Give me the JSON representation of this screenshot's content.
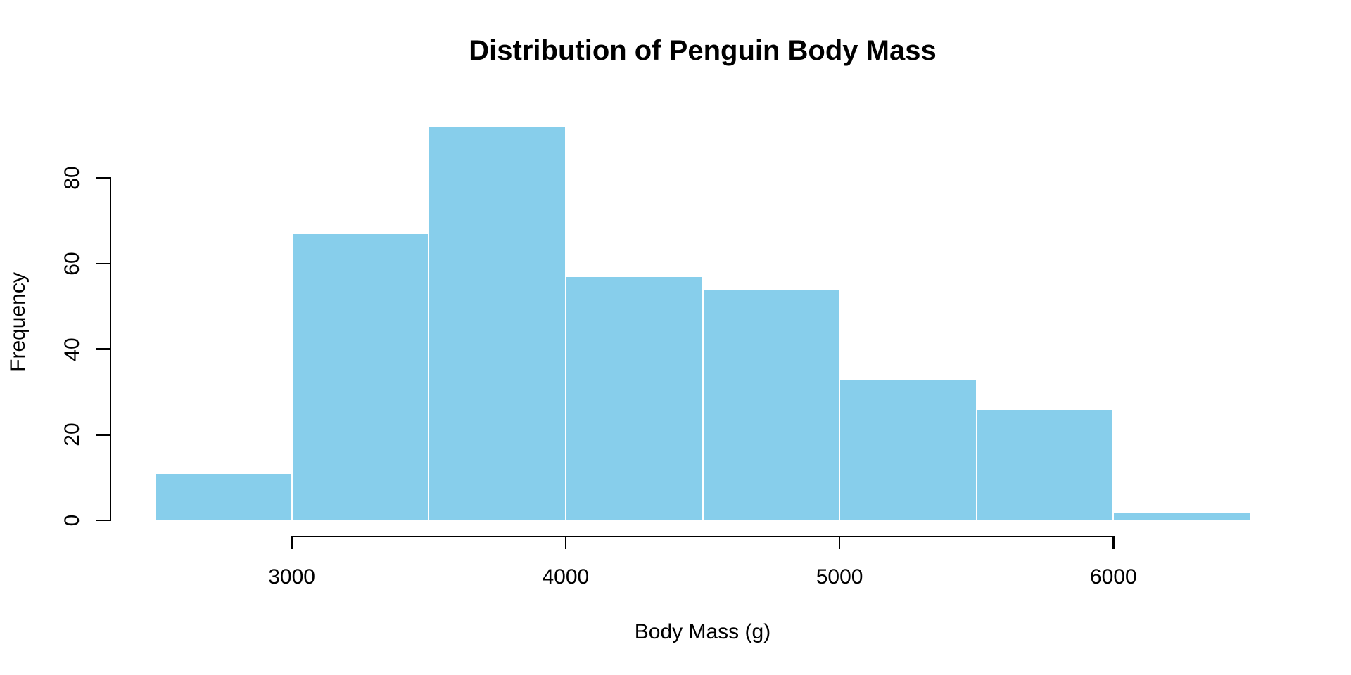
{
  "chart_data": {
    "type": "bar",
    "subtype": "histogram",
    "title": "Distribution of Penguin Body Mass",
    "xlabel": "Body Mass (g)",
    "ylabel": "Frequency",
    "bin_edges": [
      2500,
      3000,
      3500,
      4000,
      4500,
      5000,
      5500,
      6000,
      6500
    ],
    "counts": [
      11,
      67,
      92,
      57,
      54,
      33,
      26,
      2
    ],
    "x_ticks": [
      3000,
      4000,
      5000,
      6000
    ],
    "x_tick_labels": [
      "3000",
      "4000",
      "5000",
      "6000"
    ],
    "y_ticks": [
      0,
      20,
      40,
      60,
      80
    ],
    "y_tick_labels": [
      "0",
      "20",
      "40",
      "60",
      "80"
    ],
    "xlim": [
      2500,
      6500
    ],
    "ylim": [
      0,
      80
    ],
    "grid": false,
    "legend": null,
    "colors": {
      "bar_fill": "#87CEEB",
      "bar_border": "#FFFFFF",
      "axis": "#000000",
      "text": "#000000",
      "background": "#FFFFFF"
    }
  }
}
